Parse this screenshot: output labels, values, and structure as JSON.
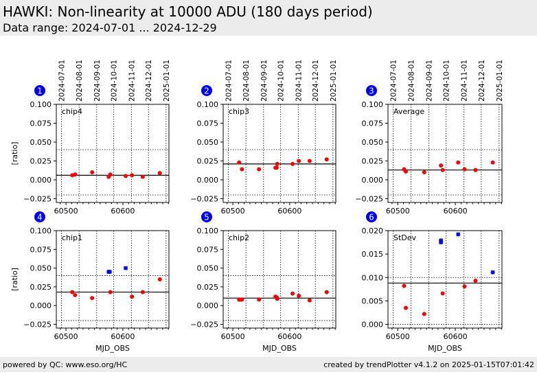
{
  "header": {
    "title": "HAWKI: Non-linearity at 10000 ADU (180 days period)",
    "subtitle": "Data range: 2024-07-01 ... 2024-12-29"
  },
  "footer": {
    "left": "powered by QC: www.eso.org/HC",
    "right": "created by trendPlotter v4.1.2 on 2025-01-15T07:01:42"
  },
  "colors": {
    "header_bg": "#ececec",
    "point": "#ff0000",
    "outlier": "#0000ff",
    "badge": "#0000ff"
  },
  "chart_data": {
    "type": "scatter",
    "xlabel": "MJD_OBS",
    "x_ticks": [
      60500,
      60600
    ],
    "xlim": [
      60483,
      60681
    ],
    "date_ticks": [
      {
        "label": "2024-07-01",
        "mjd": 60492
      },
      {
        "label": "2024-08-01",
        "mjd": 60523
      },
      {
        "label": "2024-09-01",
        "mjd": 60554
      },
      {
        "label": "2024-10-01",
        "mjd": 60584
      },
      {
        "label": "2024-11-01",
        "mjd": 60615
      },
      {
        "label": "2024-12-01",
        "mjd": 60645
      },
      {
        "label": "2025-01-01",
        "mjd": 60676
      }
    ],
    "panels": [
      {
        "id": "1",
        "label": "chip4",
        "ylabel": "[ratio]",
        "ylim": [
          -0.03,
          0.1
        ],
        "y_ticks": [
          -0.025,
          0.0,
          0.025,
          0.05,
          0.075,
          0.1
        ],
        "y_tick_labels": [
          "−0.025",
          "0.000",
          "0.025",
          "0.050",
          "0.075",
          "0.100"
        ],
        "mean": 0.006,
        "thresholds": [
          -0.02,
          0.04
        ],
        "points": [
          [
            60511,
            0.006
          ],
          [
            60516,
            0.007
          ],
          [
            60546,
            0.01
          ],
          [
            60575,
            0.004
          ],
          [
            60578,
            0.007
          ],
          [
            60605,
            0.005
          ],
          [
            60616,
            0.006
          ],
          [
            60635,
            0.004
          ],
          [
            60665,
            0.009
          ]
        ],
        "outliers": []
      },
      {
        "id": "2",
        "label": "chip3",
        "ylabel": "",
        "ylim": [
          -0.03,
          0.1
        ],
        "y_ticks": [
          -0.025,
          0.0,
          0.025,
          0.05,
          0.075,
          0.1
        ],
        "y_tick_labels": [
          "−0.025",
          "0.000",
          "0.025",
          "0.050",
          "0.075",
          "0.100"
        ],
        "mean": 0.021,
        "thresholds": [
          -0.02,
          0.04
        ],
        "points": [
          [
            60511,
            0.023
          ],
          [
            60516,
            0.014
          ],
          [
            60546,
            0.014
          ],
          [
            60575,
            0.016
          ],
          [
            60577,
            0.016
          ],
          [
            60578,
            0.021
          ],
          [
            60605,
            0.021
          ],
          [
            60616,
            0.025
          ],
          [
            60635,
            0.025
          ],
          [
            60665,
            0.027
          ]
        ],
        "outliers": []
      },
      {
        "id": "3",
        "label": "Average",
        "ylabel": "",
        "ylim": [
          -0.03,
          0.1
        ],
        "y_ticks": [
          -0.025,
          0.0,
          0.025,
          0.05,
          0.075,
          0.1
        ],
        "y_tick_labels": [
          "−0.025",
          "0.000",
          "0.025",
          "0.050",
          "0.075",
          "0.100"
        ],
        "mean": 0.013,
        "thresholds": [
          -0.02,
          0.04
        ],
        "points": [
          [
            60511,
            0.014
          ],
          [
            60514,
            0.011
          ],
          [
            60546,
            0.01
          ],
          [
            60575,
            0.019
          ],
          [
            60578,
            0.013
          ],
          [
            60605,
            0.023
          ],
          [
            60616,
            0.014
          ],
          [
            60635,
            0.013
          ],
          [
            60665,
            0.023
          ]
        ],
        "outliers": []
      },
      {
        "id": "4",
        "label": "chip1",
        "ylabel": "[ratio]",
        "ylim": [
          -0.03,
          0.1
        ],
        "y_ticks": [
          -0.025,
          0.0,
          0.025,
          0.05,
          0.075,
          0.1
        ],
        "y_tick_labels": [
          "−0.025",
          "0.000",
          "0.025",
          "0.050",
          "0.075",
          "0.100"
        ],
        "mean": 0.018,
        "thresholds": [
          -0.02,
          0.04
        ],
        "points": [
          [
            60511,
            0.018
          ],
          [
            60516,
            0.014
          ],
          [
            60546,
            0.01
          ],
          [
            60578,
            0.018
          ],
          [
            60616,
            0.012
          ],
          [
            60635,
            0.018
          ],
          [
            60665,
            0.035
          ]
        ],
        "outliers": [
          [
            60575,
            0.045
          ],
          [
            60577,
            0.045
          ],
          [
            60605,
            0.05
          ]
        ]
      },
      {
        "id": "5",
        "label": "chip2",
        "ylabel": "",
        "ylim": [
          -0.03,
          0.1
        ],
        "y_ticks": [
          -0.025,
          0.0,
          0.025,
          0.05,
          0.075,
          0.1
        ],
        "y_tick_labels": [
          "−0.025",
          "0.000",
          "0.025",
          "0.050",
          "0.075",
          "0.100"
        ],
        "mean": 0.01,
        "thresholds": [
          -0.02,
          0.04
        ],
        "points": [
          [
            60511,
            0.008
          ],
          [
            60513,
            0.008
          ],
          [
            60516,
            0.008
          ],
          [
            60546,
            0.008
          ],
          [
            60575,
            0.012
          ],
          [
            60577,
            0.011
          ],
          [
            60578,
            0.009
          ],
          [
            60605,
            0.016
          ],
          [
            60616,
            0.013
          ],
          [
            60635,
            0.007
          ],
          [
            60665,
            0.018
          ]
        ],
        "outliers": []
      },
      {
        "id": "6",
        "label": "StDev",
        "ylabel": "",
        "ylim": [
          -0.0008,
          0.02
        ],
        "y_ticks": [
          0.0,
          0.005,
          0.01,
          0.015,
          0.02
        ],
        "y_tick_labels": [
          "0.000",
          "0.005",
          "0.010",
          "0.015",
          "0.020"
        ],
        "mean": 0.0088,
        "thresholds": [
          0.0,
          0.01
        ],
        "points": [
          [
            60511,
            0.0082
          ],
          [
            60514,
            0.0035
          ],
          [
            60546,
            0.0022
          ],
          [
            60578,
            0.0066
          ],
          [
            60616,
            0.0081
          ],
          [
            60635,
            0.0093
          ]
        ],
        "outliers": [
          [
            60575,
            0.0175
          ],
          [
            60575,
            0.0179
          ],
          [
            60605,
            0.0192
          ],
          [
            60665,
            0.0111
          ]
        ]
      }
    ]
  }
}
